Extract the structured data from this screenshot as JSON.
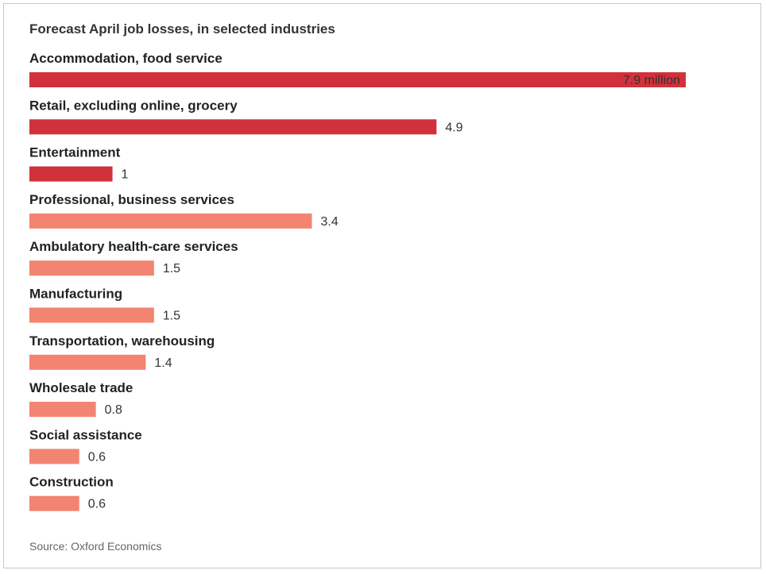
{
  "chart_data": {
    "type": "bar",
    "orientation": "horizontal",
    "title": "Forecast April job losses, in selected industries",
    "source": "Source: Oxford Economics",
    "categories": [
      "Accommodation, food service",
      "Retail, excluding online, grocery",
      "Entertainment",
      "Professional, business services",
      "Ambulatory health-care services",
      "Manufacturing",
      "Transportation, warehousing",
      "Wholesale trade",
      "Social assistance",
      "Construction"
    ],
    "values": [
      7.9,
      4.9,
      1,
      3.4,
      1.5,
      1.5,
      1.4,
      0.8,
      0.6,
      0.6
    ],
    "value_labels": [
      "7.9 million",
      "4.9",
      "1",
      "3.4",
      "1.5",
      "1.5",
      "1.4",
      "0.8",
      "0.6",
      "0.6"
    ],
    "colors": [
      "#d0313b",
      "#d0313b",
      "#d0313b",
      "#f28471",
      "#f28471",
      "#f28471",
      "#f28471",
      "#f28471",
      "#f28471",
      "#f28471"
    ],
    "xlim": [
      0,
      7.9
    ],
    "grid": false,
    "legend": "none"
  }
}
